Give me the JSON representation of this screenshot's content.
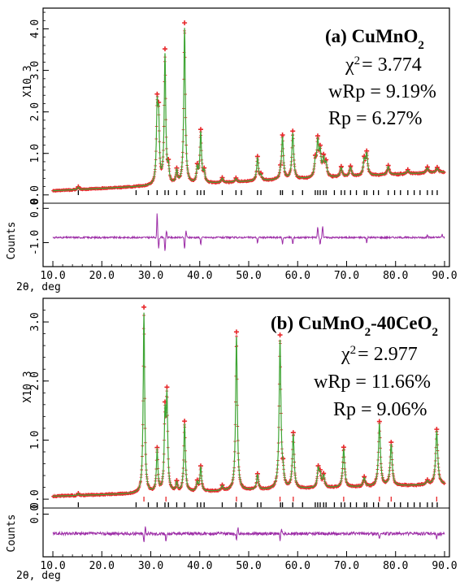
{
  "chart_data": [
    {
      "type": "line",
      "title": "(a) CuMnO",
      "title_sub": "2",
      "stats": {
        "chi_label": "χ",
        "chi_sup": "2",
        "chi": "= 3.774",
        "wrp": "wRp = 9.19%",
        "rp": "Rp = 6.27%"
      },
      "ylabel": "X10 3",
      "diff_ylabel": "Counts",
      "xlabel": "2θ, deg",
      "xlim": [
        8,
        91
      ],
      "ylim": [
        -0.2,
        4.5
      ],
      "diff_ylim": [
        -1.7,
        0.15
      ],
      "x_ticks": [
        "10.0",
        "20.0",
        "30.0",
        "40.0",
        "50.0",
        "60.0",
        "70.0",
        "80.0",
        "90.0"
      ],
      "y_ticks": [
        "0.0",
        "1.0",
        "2.0",
        "3.0",
        "4.0"
      ],
      "diff_ticks": [
        "0.0",
        "-1.0"
      ],
      "background": {
        "start": 0.1,
        "end": 0.55
      },
      "peaks": [
        [
          15.2,
          0.06
        ],
        [
          31.3,
          1.7
        ],
        [
          31.6,
          1.4
        ],
        [
          32.9,
          3.1
        ],
        [
          33.6,
          0.35
        ],
        [
          35.3,
          0.3
        ],
        [
          36.9,
          3.75
        ],
        [
          39.5,
          0.35
        ],
        [
          40.2,
          1.2
        ],
        [
          40.9,
          0.25
        ],
        [
          44.6,
          0.1
        ],
        [
          47.4,
          0.08
        ],
        [
          51.8,
          0.55
        ],
        [
          52.5,
          0.12
        ],
        [
          56.5,
          0.1
        ],
        [
          56.9,
          1.0
        ],
        [
          59.0,
          1.1
        ],
        [
          63.6,
          0.35
        ],
        [
          64.1,
          0.8
        ],
        [
          64.6,
          0.55
        ],
        [
          65.3,
          0.4
        ],
        [
          65.8,
          0.3
        ],
        [
          68.9,
          0.22
        ],
        [
          70.8,
          0.22
        ],
        [
          73.6,
          0.35
        ],
        [
          74.1,
          0.5
        ],
        [
          78.5,
          0.2
        ],
        [
          82.5,
          0.08
        ],
        [
          86.5,
          0.12
        ],
        [
          88.5,
          0.1
        ]
      ],
      "reflections": [
        15.2,
        27.0,
        29.5,
        31.3,
        32.9,
        33.6,
        35.3,
        36.9,
        39.5,
        40.2,
        40.9,
        44.6,
        47.4,
        48.5,
        51.8,
        52.5,
        56.5,
        56.9,
        59.0,
        61.0,
        63.6,
        64.1,
        64.6,
        65.3,
        65.8,
        67.5,
        68.9,
        69.6,
        70.8,
        72.0,
        73.6,
        74.1,
        75.5,
        76.5,
        78.5,
        79.8,
        81.0,
        82.5,
        83.8,
        85.0,
        86.5,
        87.5,
        88.5
      ],
      "diff_baseline": -0.85,
      "diff_spikes": [
        [
          31.3,
          0.7
        ],
        [
          31.6,
          -0.3
        ],
        [
          32.9,
          -0.4
        ],
        [
          33.2,
          0.2
        ],
        [
          36.9,
          -0.35
        ],
        [
          37.2,
          0.2
        ],
        [
          40.2,
          -0.2
        ],
        [
          51.8,
          -0.15
        ],
        [
          56.9,
          -0.2
        ],
        [
          59.0,
          -0.2
        ],
        [
          64.1,
          0.3
        ],
        [
          64.6,
          -0.2
        ],
        [
          65.1,
          0.35
        ],
        [
          74.1,
          -0.15
        ],
        [
          86.5,
          0.1
        ],
        [
          89.5,
          0.1
        ]
      ]
    },
    {
      "type": "line",
      "title": "(b) CuMnO",
      "title_sub": "2",
      "title_rest": "-40CeO",
      "title_sub2": "2",
      "stats": {
        "chi_label": "χ",
        "chi_sup": "2",
        "chi": "= 2.977",
        "wrp": "wRp = 11.66%",
        "rp": "Rp = 9.06%"
      },
      "ylabel": "X10 3",
      "diff_ylabel": "Counts",
      "xlabel": "2θ, deg",
      "xlim": [
        8,
        91
      ],
      "ylim": [
        -0.15,
        3.4
      ],
      "diff_ylim": [
        -0.7,
        0.1
      ],
      "x_ticks": [
        "10.0",
        "20.0",
        "30.0",
        "40.0",
        "50.0",
        "60.0",
        "70.0",
        "80.0",
        "90.0"
      ],
      "y_ticks": [
        "0.0",
        "1.0",
        "2.0",
        "3.0"
      ],
      "diff_ticks": [
        "0.0"
      ],
      "background": {
        "start": 0.05,
        "end": 0.25
      },
      "peaks": [
        [
          15.2,
          0.03
        ],
        [
          28.6,
          3.05
        ],
        [
          31.3,
          0.7
        ],
        [
          32.9,
          1.2
        ],
        [
          33.3,
          1.5
        ],
        [
          35.3,
          0.15
        ],
        [
          36.9,
          1.15
        ],
        [
          39.5,
          0.15
        ],
        [
          40.2,
          0.4
        ],
        [
          44.6,
          0.08
        ],
        [
          47.5,
          2.6
        ],
        [
          51.8,
          0.25
        ],
        [
          56.4,
          2.5
        ],
        [
          57.0,
          0.2
        ],
        [
          59.1,
          0.9
        ],
        [
          64.2,
          0.3
        ],
        [
          64.6,
          0.2
        ],
        [
          65.3,
          0.2
        ],
        [
          69.4,
          0.65
        ],
        [
          73.6,
          0.15
        ],
        [
          76.7,
          1.05
        ],
        [
          79.1,
          0.7
        ],
        [
          86.5,
          0.06
        ],
        [
          88.4,
          0.9
        ]
      ],
      "reflections_ceo2": [
        28.6,
        33.1,
        47.5,
        56.4,
        59.1,
        69.4,
        76.7,
        79.1,
        88.4
      ],
      "reflections": [
        15.2,
        27.0,
        29.5,
        31.3,
        32.9,
        33.6,
        35.3,
        36.9,
        39.5,
        40.2,
        40.9,
        44.6,
        47.4,
        48.5,
        51.8,
        52.5,
        56.5,
        56.9,
        59.0,
        61.0,
        63.6,
        64.1,
        64.6,
        65.3,
        65.8,
        67.5,
        68.9,
        69.6,
        70.8,
        72.0,
        73.6,
        74.1,
        75.5,
        76.5,
        78.5,
        79.8,
        81.0,
        82.5,
        83.8,
        85.0,
        86.5,
        87.5,
        88.5
      ],
      "diff_baseline": -0.32,
      "diff_spikes": [
        [
          28.6,
          -0.15
        ],
        [
          28.9,
          0.12
        ],
        [
          33.1,
          -0.12
        ],
        [
          47.5,
          -0.12
        ],
        [
          47.8,
          0.1
        ],
        [
          56.4,
          -0.12
        ],
        [
          56.7,
          0.1
        ],
        [
          76.7,
          -0.08
        ],
        [
          88.4,
          -0.1
        ]
      ]
    }
  ],
  "colors": {
    "observed": "#e8272a",
    "calculated": "#3fa535",
    "difference": "#9c2ca6",
    "ticks_main": "#000000",
    "ticks_second": "#e8272a"
  }
}
